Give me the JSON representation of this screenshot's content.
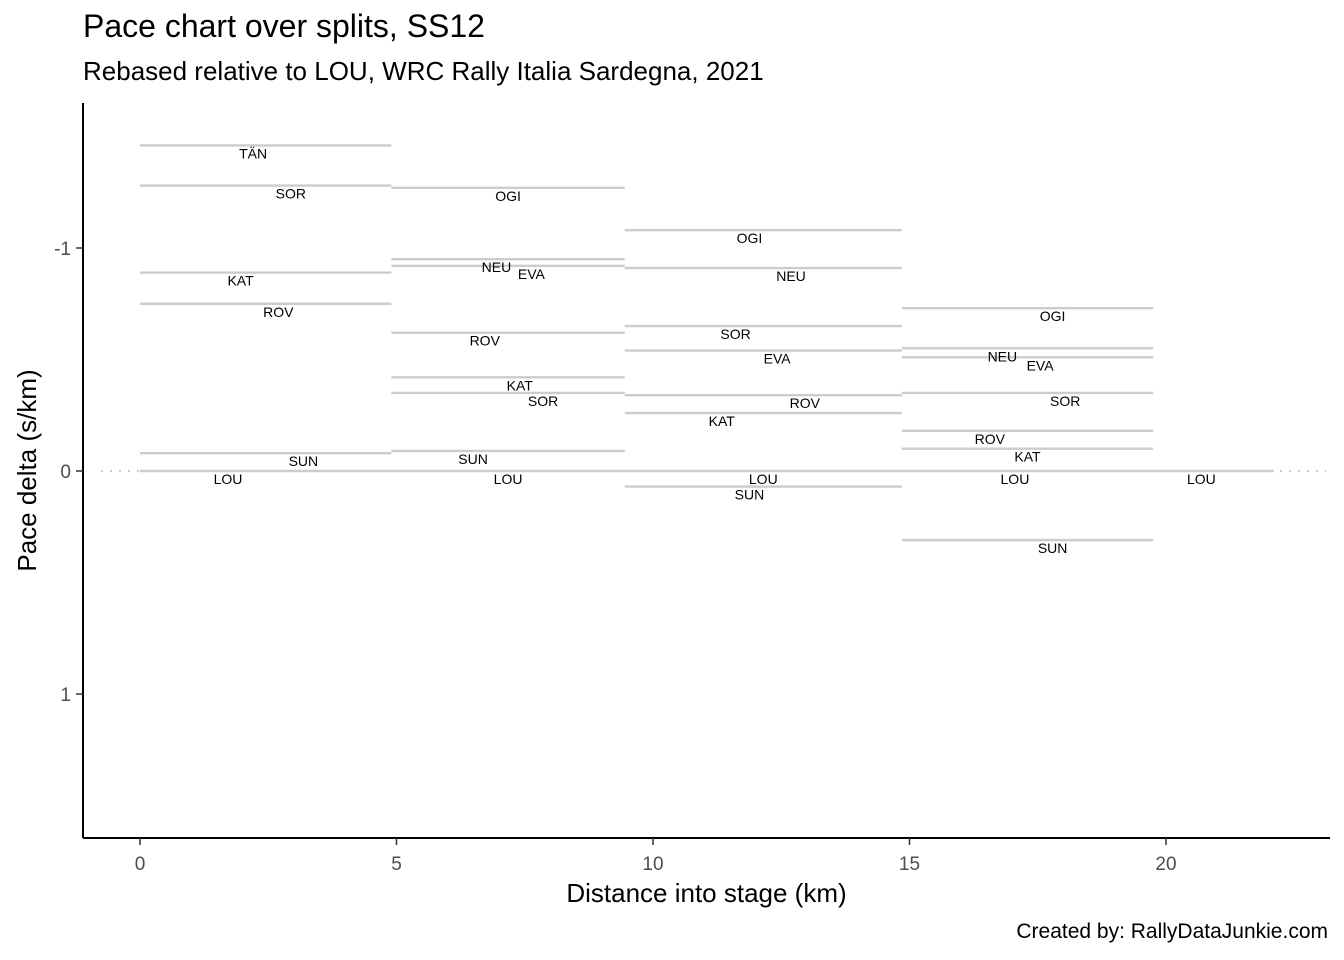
{
  "title": "Pace chart over splits, SS12",
  "subtitle": "Rebased relative to LOU, WRC Rally Italia Sardegna, 2021",
  "caption": "Created by: RallyDataJunkie.com",
  "chart_data": {
    "type": "line",
    "xlabel": "Distance into stage (km)",
    "ylabel": "Pace delta (s/km)",
    "xlim": [
      -1.1,
      23.2
    ],
    "ylim": [
      1.65,
      -1.5
    ],
    "y_reversed": true,
    "x_ticks": [
      0,
      5,
      10,
      15,
      20
    ],
    "y_ticks": [
      -1,
      0,
      1
    ],
    "grid": false,
    "colors": {
      "segment": "#cccccc",
      "zero_line": "#cccccc",
      "axis": "#000000"
    },
    "reference_line": {
      "y": 0,
      "style": "dotted"
    },
    "segments": [
      {
        "driver": "TÄN",
        "x_start": 0,
        "x_end": 4.9,
        "pace": -1.46
      },
      {
        "driver": "SOR",
        "x_start": 0,
        "x_end": 4.9,
        "pace": -1.28
      },
      {
        "driver": "KAT",
        "x_start": 0,
        "x_end": 4.9,
        "pace": -0.89
      },
      {
        "driver": "ROV",
        "x_start": 0,
        "x_end": 4.9,
        "pace": -0.75
      },
      {
        "driver": "SUN",
        "x_start": 0,
        "x_end": 4.9,
        "pace": -0.08
      },
      {
        "driver": "LOU",
        "x_start": 0,
        "x_end": 4.9,
        "pace": 0
      },
      {
        "driver": "OGI",
        "x_start": 4.9,
        "x_end": 9.45,
        "pace": -1.27
      },
      {
        "driver": "NEU",
        "x_start": 4.9,
        "x_end": 9.45,
        "pace": -0.95
      },
      {
        "driver": "EVA",
        "x_start": 4.9,
        "x_end": 9.45,
        "pace": -0.92
      },
      {
        "driver": "ROV",
        "x_start": 4.9,
        "x_end": 9.45,
        "pace": -0.62
      },
      {
        "driver": "KAT",
        "x_start": 4.9,
        "x_end": 9.45,
        "pace": -0.42
      },
      {
        "driver": "SOR",
        "x_start": 4.9,
        "x_end": 9.45,
        "pace": -0.35
      },
      {
        "driver": "SUN",
        "x_start": 4.9,
        "x_end": 9.45,
        "pace": -0.09
      },
      {
        "driver": "LOU",
        "x_start": 4.9,
        "x_end": 9.45,
        "pace": 0
      },
      {
        "driver": "OGI",
        "x_start": 9.45,
        "x_end": 14.85,
        "pace": -1.08
      },
      {
        "driver": "NEU",
        "x_start": 9.45,
        "x_end": 14.85,
        "pace": -0.91
      },
      {
        "driver": "SOR",
        "x_start": 9.45,
        "x_end": 14.85,
        "pace": -0.65
      },
      {
        "driver": "EVA",
        "x_start": 9.45,
        "x_end": 14.85,
        "pace": -0.54
      },
      {
        "driver": "ROV",
        "x_start": 9.45,
        "x_end": 14.85,
        "pace": -0.34
      },
      {
        "driver": "KAT",
        "x_start": 9.45,
        "x_end": 14.85,
        "pace": -0.26
      },
      {
        "driver": "LOU",
        "x_start": 9.45,
        "x_end": 14.85,
        "pace": 0
      },
      {
        "driver": "SUN",
        "x_start": 9.45,
        "x_end": 14.85,
        "pace": 0.07
      },
      {
        "driver": "OGI",
        "x_start": 14.85,
        "x_end": 19.75,
        "pace": -0.73
      },
      {
        "driver": "NEU",
        "x_start": 14.85,
        "x_end": 19.75,
        "pace": -0.55
      },
      {
        "driver": "EVA",
        "x_start": 14.85,
        "x_end": 19.75,
        "pace": -0.51
      },
      {
        "driver": "SOR",
        "x_start": 14.85,
        "x_end": 19.75,
        "pace": -0.35
      },
      {
        "driver": "ROV",
        "x_start": 14.85,
        "x_end": 19.75,
        "pace": -0.18
      },
      {
        "driver": "KAT",
        "x_start": 14.85,
        "x_end": 19.75,
        "pace": -0.1
      },
      {
        "driver": "LOU",
        "x_start": 14.85,
        "x_end": 19.75,
        "pace": 0
      },
      {
        "driver": "SUN",
        "x_start": 14.85,
        "x_end": 19.75,
        "pace": 0.31
      },
      {
        "driver": "LOU",
        "x_start": 19.75,
        "x_end": 22.1,
        "pace": 0
      }
    ]
  }
}
